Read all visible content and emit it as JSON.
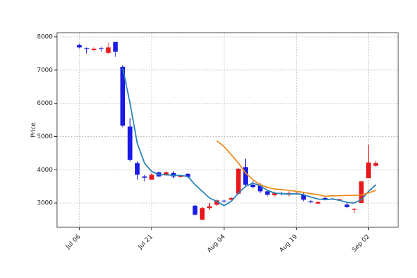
{
  "chart_data": {
    "type": "candlestick",
    "ylabel": "Price",
    "categories": [
      "Jul 06",
      null,
      null,
      null,
      null,
      null,
      null,
      null,
      null,
      null,
      "Jul 21",
      null,
      null,
      null,
      null,
      null,
      null,
      null,
      null,
      null,
      "Aug 04",
      null,
      null,
      null,
      null,
      null,
      null,
      null,
      null,
      null,
      "Aug 19",
      null,
      null,
      null,
      null,
      null,
      null,
      null,
      null,
      null,
      "Sep 02",
      null
    ],
    "open": [
      7750,
      7660,
      7600,
      7660,
      7520,
      7850,
      7100,
      5300,
      4200,
      3800,
      3700,
      3920,
      3850,
      3900,
      3780,
      3880,
      2920,
      2500,
      2850,
      2950,
      3070,
      3100,
      3280,
      4080,
      3550,
      3550,
      3350,
      3230,
      3300,
      3270,
      3280,
      3250,
      3050,
      2980,
      3150,
      3130,
      3100,
      2950,
      2800,
      3000,
      3750,
      4120
    ],
    "high": [
      7800,
      7680,
      7680,
      7700,
      7820,
      7850,
      7150,
      5550,
      4250,
      3850,
      3900,
      3950,
      3950,
      3950,
      3850,
      3900,
      2950,
      2880,
      3000,
      3100,
      3100,
      3180,
      4050,
      4330,
      3650,
      3600,
      3400,
      3350,
      3330,
      3350,
      3320,
      3300,
      3100,
      3050,
      3200,
      3150,
      3130,
      3000,
      2850,
      3650,
      4750,
      4250
    ],
    "low": [
      7650,
      7500,
      7580,
      7550,
      7480,
      7400,
      5280,
      4250,
      3700,
      3650,
      3700,
      3780,
      3820,
      3750,
      3780,
      3750,
      2620,
      2480,
      2800,
      2920,
      3020,
      3080,
      3250,
      3500,
      3450,
      3300,
      3200,
      3200,
      3230,
      3200,
      3250,
      3050,
      3000,
      2980,
      3100,
      3100,
      3100,
      2850,
      2700,
      3000,
      3750,
      4100
    ],
    "close": [
      7680,
      7640,
      7640,
      7640,
      7680,
      7550,
      5330,
      4300,
      3850,
      3760,
      3850,
      3800,
      3920,
      3800,
      3820,
      3780,
      2650,
      2850,
      2900,
      3080,
      3060,
      3150,
      4030,
      3550,
      3480,
      3350,
      3250,
      3300,
      3270,
      3300,
      3300,
      3100,
      3020,
      3030,
      3120,
      3120,
      3120,
      2880,
      2820,
      3650,
      4220,
      4200
    ],
    "up_color": "#e8191c",
    "down_color": "#1b1be6",
    "lines": [
      {
        "color": "#2a82b4",
        "values": [
          null,
          null,
          null,
          null,
          null,
          null,
          7050,
          6000,
          4800,
          4200,
          3950,
          3850,
          3850,
          3830,
          3830,
          3800,
          3550,
          3350,
          3150,
          3050,
          2920,
          3050,
          3300,
          3500,
          3600,
          3520,
          3380,
          3300,
          3280,
          3270,
          3280,
          3250,
          3180,
          3120,
          3100,
          3120,
          3080,
          3020,
          3000,
          3100,
          3350,
          3550
        ]
      },
      {
        "color": "#f08a1c",
        "values": [
          null,
          null,
          null,
          null,
          null,
          null,
          null,
          null,
          null,
          null,
          null,
          null,
          null,
          null,
          null,
          null,
          null,
          null,
          null,
          4870,
          4700,
          4450,
          4200,
          3900,
          3700,
          3550,
          3470,
          3420,
          3400,
          3380,
          3350,
          3320,
          3280,
          3250,
          3200,
          3220,
          3220,
          3230,
          3230,
          3240,
          3300,
          3380
        ]
      }
    ],
    "xlim": [
      -3.1,
      44.1
    ],
    "ylim": [
      2270,
      8125
    ],
    "yticks": [
      3000,
      4000,
      5000,
      6000,
      7000,
      8000
    ],
    "grid": true
  }
}
